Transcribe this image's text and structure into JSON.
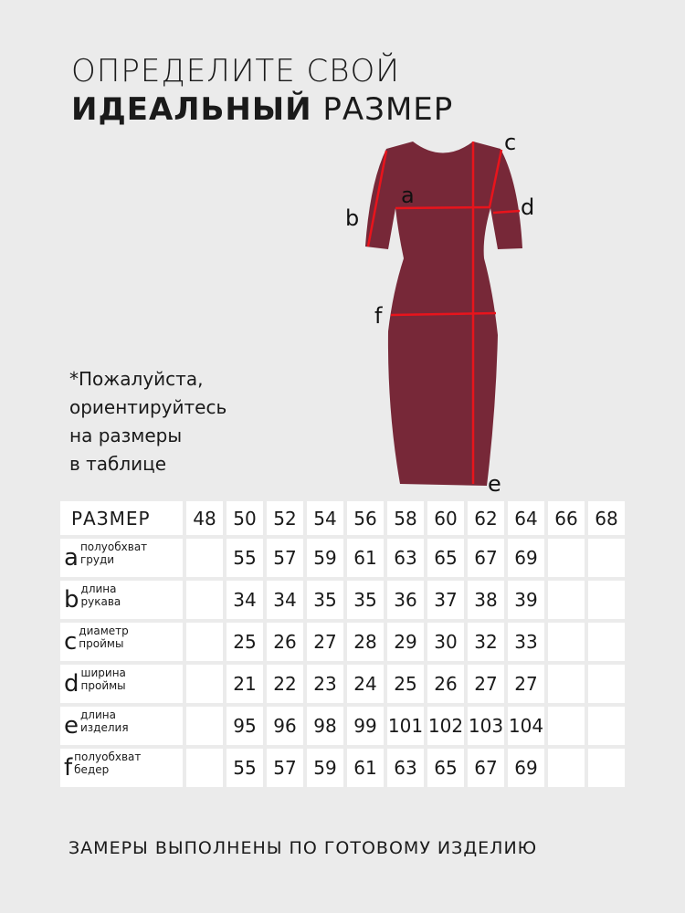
{
  "title": {
    "line1": "ОПРЕДЕЛИТЕ СВОЙ",
    "bold": "ИДЕАЛЬНЫЙ",
    "rest": " РАЗМЕР"
  },
  "note": [
    "*Пожалуйста,",
    "ориентируйтесь",
    "на размеры",
    "в таблице"
  ],
  "diagram": {
    "labels": {
      "a": "a",
      "b": "b",
      "c": "c",
      "d": "d",
      "e": "e",
      "f": "f"
    },
    "colors": {
      "dress": "#772838",
      "lines": "#e8141c"
    }
  },
  "table": {
    "header": "РАЗМЕР",
    "sizes": [
      "48",
      "50",
      "52",
      "54",
      "56",
      "58",
      "60",
      "62",
      "64",
      "66",
      "68"
    ],
    "rows": [
      {
        "letter": "a",
        "l1": "полуобхват",
        "l2": "груди",
        "values": [
          "",
          "55",
          "57",
          "59",
          "61",
          "63",
          "65",
          "67",
          "69",
          "",
          ""
        ]
      },
      {
        "letter": "b",
        "l1": "длина",
        "l2": "рукава",
        "values": [
          "",
          "34",
          "34",
          "35",
          "35",
          "36",
          "37",
          "38",
          "39",
          "",
          ""
        ]
      },
      {
        "letter": "c",
        "l1": "диаметр",
        "l2": "проймы",
        "values": [
          "",
          "25",
          "26",
          "27",
          "28",
          "29",
          "30",
          "32",
          "33",
          "",
          ""
        ]
      },
      {
        "letter": "d",
        "l1": "ширина",
        "l2": "проймы",
        "values": [
          "",
          "21",
          "22",
          "23",
          "24",
          "25",
          "26",
          "27",
          "27",
          "",
          ""
        ]
      },
      {
        "letter": "e",
        "l1": "длина",
        "l2": "изделия",
        "values": [
          "",
          "95",
          "96",
          "98",
          "99",
          "101",
          "102",
          "103",
          "104",
          "",
          ""
        ]
      },
      {
        "letter": "f",
        "l1": "полуобхват",
        "l2": "бедер",
        "values": [
          "",
          "55",
          "57",
          "59",
          "61",
          "63",
          "65",
          "67",
          "69",
          "",
          ""
        ]
      }
    ]
  },
  "footer": "ЗАМЕРЫ ВЫПОЛНЕНЫ ПО ГОТОВОМУ ИЗДЕЛИЮ"
}
